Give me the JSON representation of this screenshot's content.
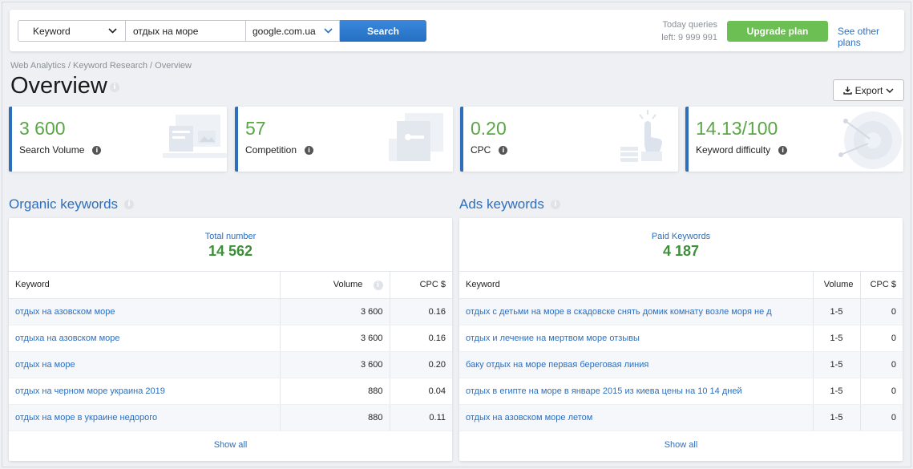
{
  "search": {
    "type_selected": "Keyword",
    "keyword_value": "отдых на море",
    "database_selected": "google.com.ua",
    "search_label": "Search"
  },
  "queries": {
    "label": "Today queries",
    "left": "left: 9 999 991"
  },
  "upgrade_label": "Upgrade plan",
  "other_plans_label": "See other plans",
  "breadcrumb": "Web Analytics / Keyword Research / Overview",
  "page_title": "Overview",
  "export_label": "Export",
  "metrics": [
    {
      "value": "3 600",
      "label": "Search Volume",
      "icon": "laptop-chart-icon"
    },
    {
      "value": "57",
      "label": "Competition",
      "icon": "browser-key-icon"
    },
    {
      "value": "0.20",
      "label": "CPC",
      "icon": "hand-click-icon"
    },
    {
      "value": "14.13",
      "value_suffix": "/100",
      "label": "Keyword difficulty",
      "icon": "target-icon"
    }
  ],
  "organic": {
    "title": "Organic keywords",
    "total_label": "Total number",
    "total_value": "14 562",
    "columns": [
      "Keyword",
      "Volume",
      "CPC $"
    ],
    "rows": [
      {
        "keyword": "отдых на азовском море",
        "volume": "3 600",
        "cpc": "0.16"
      },
      {
        "keyword": "отдыха на азовском море",
        "volume": "3 600",
        "cpc": "0.16"
      },
      {
        "keyword": "отдых на море",
        "volume": "3 600",
        "cpc": "0.20"
      },
      {
        "keyword": "отдых на черном море украина 2019",
        "volume": "880",
        "cpc": "0.04"
      },
      {
        "keyword": "отдых на море в украине недорого",
        "volume": "880",
        "cpc": "0.11"
      }
    ],
    "show_all": "Show all"
  },
  "ads": {
    "title": "Ads keywords",
    "total_label": "Paid Keywords",
    "total_value": "4 187",
    "columns": [
      "Keyword",
      "Volume",
      "CPC $"
    ],
    "rows": [
      {
        "keyword": "отдых с детьми на море в скадовске снять домик комнату возле моря не д",
        "volume": "1-5",
        "cpc": "0"
      },
      {
        "keyword": "отдых и лечение на мертвом море отзывы",
        "volume": "1-5",
        "cpc": "0"
      },
      {
        "keyword": "баку отдых на море первая береговая линия",
        "volume": "1-5",
        "cpc": "0"
      },
      {
        "keyword": "отдых в египте на море в январе 2015 из киева цены на 10 14 дней",
        "volume": "1-5",
        "cpc": "0"
      },
      {
        "keyword": "отдых на азовском море летом",
        "volume": "1-5",
        "cpc": "0"
      }
    ],
    "show_all": "Show all"
  },
  "colors": {
    "accent_blue": "#2d6fbd",
    "value_green": "#5aa647",
    "upgrade_green": "#6cbf52"
  }
}
